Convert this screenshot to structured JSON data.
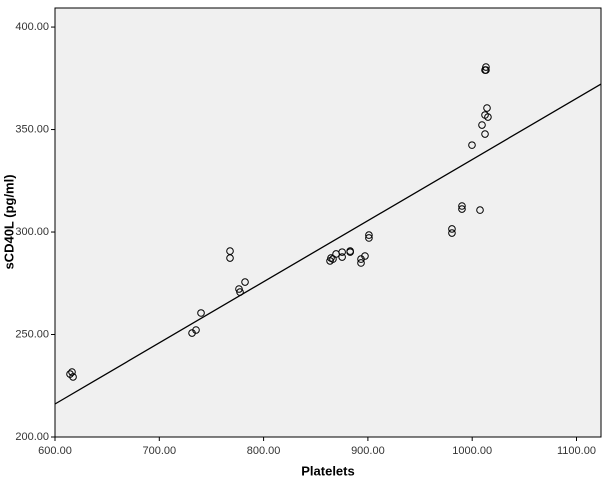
{
  "chart_data": {
    "type": "scatter",
    "x_label": "Platelets",
    "y_label": "sCD40L (pg/ml)",
    "x": [
      616.3,
      614.4,
      617.3,
      731.4,
      735.2,
      740,
      767.8,
      767.8,
      776.4,
      777.4,
      782.2,
      863.7,
      864.6,
      866.5,
      869.5,
      875.3,
      875.3,
      883,
      883,
      893.4,
      893.4,
      897.2,
      901,
      901,
      980.6,
      980.6,
      990.2,
      990.2,
      999.8,
      1007.5,
      1009.4,
      1012.3,
      1012.3,
      1014.2,
      1015.1,
      1012.3,
      1013.2,
      1013.2
    ],
    "values": [
      231.7,
      230.7,
      229.3,
      250.7,
      252.2,
      260.5,
      290.7,
      287.3,
      272.2,
      270.7,
      275.6,
      285.9,
      287.3,
      286.8,
      289.3,
      287.8,
      290.2,
      290.2,
      290.7,
      286.8,
      284.9,
      288.3,
      298.5,
      297.1,
      301.5,
      299.5,
      312.7,
      311.2,
      342.4,
      310.7,
      352.2,
      347.8,
      357.1,
      360.5,
      356.1,
      379,
      380.5,
      379
    ],
    "marker_color": "#000000",
    "fit": {
      "x": [
        600,
        1123.5
      ],
      "y": [
        216.1,
        372.2
      ],
      "color": "#000000"
    },
    "xlim": [
      600,
      1123.5
    ],
    "ylim": [
      200,
      409.3
    ],
    "xticks": [
      {
        "value": 600,
        "label": "600.00"
      },
      {
        "value": 700,
        "label": "700.00"
      },
      {
        "value": 800,
        "label": "800.00"
      },
      {
        "value": 900,
        "label": "900.00"
      },
      {
        "value": 1000,
        "label": "1000.00"
      },
      {
        "value": 1100,
        "label": "1100.00"
      }
    ],
    "yticks": [
      {
        "value": 200,
        "label": "200.00"
      },
      {
        "value": 250,
        "label": "250.00"
      },
      {
        "value": 300,
        "label": "300.00"
      },
      {
        "value": 350,
        "label": "350.00"
      },
      {
        "value": 400,
        "label": "400.00"
      }
    ],
    "background": "#f0f0f0"
  }
}
